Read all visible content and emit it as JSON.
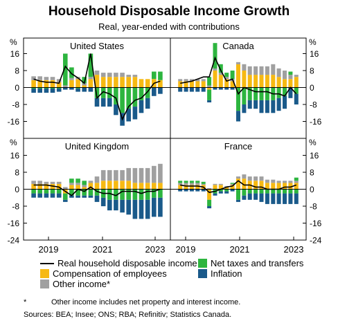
{
  "title": "Household Disposable Income Growth",
  "subtitle": "Real, year-ended with contributions",
  "colors": {
    "net_taxes": "#2db53f",
    "compensation": "#f6b913",
    "inflation": "#1a5a8a",
    "other_income": "#a0a0a0",
    "line": "#000000"
  },
  "chart_data": {
    "type": "bar",
    "unit": "%",
    "ylim": [
      -24,
      24
    ],
    "yticks": [
      16,
      8,
      0,
      -8,
      -16,
      -24
    ],
    "x_labels": [
      "2019",
      "2021",
      "2023"
    ],
    "series_names": [
      "Real household disposable income",
      "Net taxes and transfers",
      "Compensation of employees",
      "Other income*",
      "Inflation"
    ],
    "panels": [
      {
        "name": "United States",
        "compensation": [
          3.5,
          3.5,
          3.5,
          3.5,
          2.5,
          0,
          3.5,
          4,
          1,
          4,
          6,
          5,
          5,
          5,
          5,
          5,
          5,
          4,
          4,
          4,
          3.5
        ],
        "other_income": [
          1.8,
          1.8,
          1.5,
          1.5,
          1.5,
          1,
          1,
          1,
          1,
          1,
          2,
          2,
          2,
          2,
          2,
          1,
          1,
          0,
          0,
          0,
          0
        ],
        "net_taxes_pos": [
          0,
          0,
          0,
          0,
          0,
          15,
          5,
          0,
          3,
          11,
          0,
          0,
          0,
          0,
          0,
          0,
          0,
          0,
          0,
          3.5,
          4
        ],
        "net_taxes_neg": [
          -0.5,
          -0.5,
          -0.5,
          -0.5,
          -0.5,
          0,
          0,
          -0.5,
          0,
          0,
          -5,
          -5,
          -5,
          -8,
          -12,
          -10,
          -9,
          -6,
          -5,
          0,
          0
        ],
        "inflation": [
          -2,
          -2,
          -2,
          -2,
          -1.5,
          -1,
          -1,
          -1.5,
          -2,
          -2,
          -4,
          -4,
          -4,
          -5,
          -6,
          -6,
          -6,
          -6,
          -5,
          -4,
          -3
        ],
        "line": [
          4,
          3,
          2.5,
          2.5,
          2,
          10,
          6.5,
          4.5,
          2,
          16,
          -5,
          -2,
          -3,
          -5,
          -15,
          -9,
          -6,
          -5,
          -2,
          2,
          3
        ]
      },
      {
        "name": "Canada",
        "compensation": [
          3,
          3,
          3,
          3,
          3,
          -1,
          8,
          6,
          4,
          3,
          11,
          8,
          6,
          6,
          6,
          6,
          6,
          5,
          4,
          4,
          5
        ],
        "other_income": [
          1,
          1,
          1,
          1,
          1,
          1,
          1,
          1,
          1,
          1,
          1,
          3,
          4,
          4,
          4,
          4,
          5,
          4,
          4,
          2,
          1
        ],
        "net_taxes_pos": [
          0,
          0,
          0,
          0,
          0,
          4,
          12,
          4,
          2,
          4,
          0,
          0,
          0,
          0,
          0,
          0,
          0,
          0,
          0,
          1.5,
          0
        ],
        "net_taxes_neg": [
          0,
          0,
          0,
          0,
          0,
          -5,
          0,
          0,
          0,
          0,
          -11,
          -8,
          -6,
          -6,
          -6,
          -6,
          -6,
          -5,
          -4,
          0,
          -3
        ],
        "inflation": [
          -2,
          -2,
          -2,
          -2,
          -2,
          -1,
          -1,
          -1,
          -1,
          -1,
          -5,
          -4,
          -4,
          -4,
          -6,
          -6,
          -6,
          -6,
          -6,
          -5,
          -5
        ],
        "line": [
          2,
          2.5,
          3,
          4,
          5,
          5,
          14,
          8,
          3,
          4,
          -3,
          0,
          -1,
          -2,
          -2,
          -2,
          -3,
          -3,
          -4,
          0,
          -3
        ]
      },
      {
        "name": "United Kingdom",
        "compensation": [
          2.5,
          2.5,
          2.5,
          2.5,
          2.5,
          -2,
          2,
          2,
          1,
          3,
          3,
          4,
          4,
          4,
          4,
          4,
          3,
          3,
          3,
          3,
          3
        ],
        "other_income": [
          1.5,
          1.5,
          1,
          1,
          1,
          1,
          1,
          1,
          1,
          1,
          3,
          5,
          5,
          5,
          5,
          6,
          7,
          7,
          7,
          8,
          9
        ],
        "net_taxes_pos": [
          0,
          0,
          0,
          0,
          0,
          0,
          2,
          2,
          2,
          0,
          0,
          0,
          0,
          0,
          0,
          0,
          0,
          0,
          0,
          0,
          0
        ],
        "net_taxes_neg": [
          -2,
          -2,
          -2,
          -2,
          -2,
          -3,
          -3,
          -3,
          -3,
          -3,
          -3,
          -4,
          -5,
          -5,
          -5,
          -5,
          -5,
          -5,
          -5,
          -4,
          -4
        ],
        "inflation": [
          -2,
          -2,
          -2,
          -2,
          -2,
          -1,
          -1,
          -1,
          -1,
          -1,
          -3,
          -4,
          -5,
          -5,
          -6,
          -7,
          -9,
          -9,
          -9,
          -9,
          -9
        ],
        "line": [
          2,
          2,
          2,
          1.5,
          1,
          -1,
          -3,
          0,
          -1,
          1,
          -1,
          -2,
          -2,
          -3,
          -1,
          -1,
          -1,
          -2,
          -1,
          -1,
          0
        ]
      },
      {
        "name": "France",
        "compensation": [
          2,
          2,
          2,
          2,
          2,
          -5,
          2,
          2,
          1,
          2,
          5,
          5,
          4,
          4,
          4,
          3,
          3,
          3,
          3,
          3,
          3
        ],
        "other_income": [
          1,
          1,
          1,
          1,
          0.5,
          0.5,
          0.5,
          0.5,
          0.5,
          0.5,
          1,
          2,
          2,
          2,
          2,
          1.5,
          1.5,
          1,
          1,
          1,
          1
        ],
        "net_taxes_pos": [
          1,
          1,
          1,
          1,
          1,
          0,
          0,
          0,
          0,
          0.5,
          0,
          0,
          0,
          0,
          0,
          0,
          0,
          0,
          0,
          0,
          1.5
        ],
        "net_taxes_neg": [
          0,
          0,
          0,
          0,
          0,
          -3,
          -2,
          -1,
          -1,
          0,
          -5,
          -3,
          -2,
          -2,
          -2,
          -2,
          -2,
          -2,
          -2,
          -2,
          -2
        ],
        "inflation": [
          -1,
          -1,
          -1,
          -1,
          -1,
          -1,
          -1,
          -1,
          -1,
          -1,
          -1,
          -2,
          -3,
          -3,
          -4,
          -5,
          -5,
          -5,
          -5,
          -5,
          -5
        ],
        "line": [
          2,
          1.5,
          1.5,
          1.5,
          1,
          -1.5,
          -1,
          0,
          1,
          1.5,
          4,
          2,
          2,
          1,
          1,
          0,
          0,
          0,
          1,
          1,
          2
        ]
      }
    ]
  },
  "legend": {
    "line": "Real household disposable income",
    "net_taxes": "Net taxes and transfers",
    "compensation": "Compensation of employees",
    "inflation": "Inflation",
    "other_income": "Other income*"
  },
  "notes": {
    "footnote_marker": "*",
    "footnote": "Other income includes net property and interest income.",
    "sources": "Sources: BEA; Insee; ONS; RBA; Refinitiv; Statistics Canada."
  }
}
